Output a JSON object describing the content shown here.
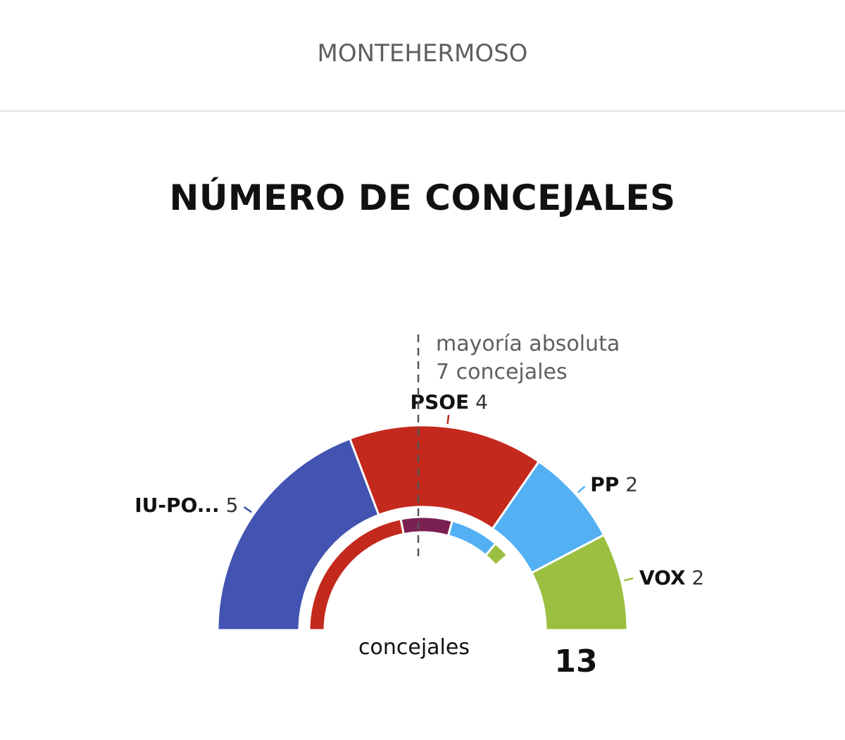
{
  "header": {
    "municipality": "MONTEHERMOSO"
  },
  "chart_data": {
    "type": "hemicycle",
    "title": "NÚMERO DE CONCEJALES",
    "total_seats": 13,
    "total_label": "concejales",
    "majority": {
      "line1": "mayoría absoluta",
      "line2": "7 concejales",
      "seats": 7
    },
    "series": [
      {
        "name": "IU-PO...",
        "value": 5,
        "color": "#4353b1"
      },
      {
        "name": "PSOE",
        "value": 4,
        "color": "#c4291d"
      },
      {
        "name": "PP",
        "value": 2,
        "color": "#53b0f3"
      },
      {
        "name": "VOX",
        "value": 2,
        "color": "#9bbf40"
      }
    ],
    "previous_series": [
      {
        "value": 5.7,
        "color": "#c4291d"
      },
      {
        "value": 1.9,
        "color": "#7b2152"
      },
      {
        "value": 1.8,
        "color": "#53b0f3"
      },
      {
        "value": 0.6,
        "color": "#9bbf40"
      }
    ]
  }
}
